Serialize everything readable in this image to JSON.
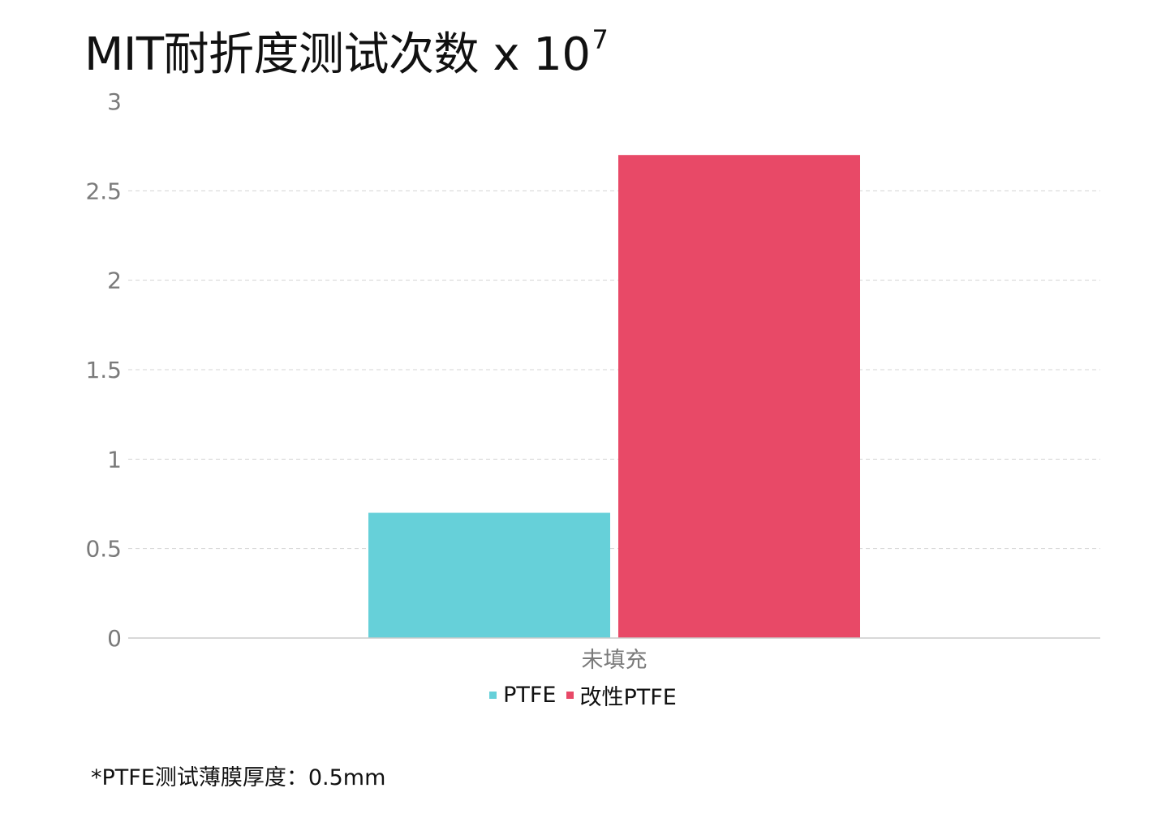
{
  "chart_data": {
    "type": "bar",
    "title": "MIT耐折度测试次数 x 10",
    "title_exponent": "7",
    "categories": [
      "未填充"
    ],
    "series": [
      {
        "name": "PTFE",
        "values": [
          0.7
        ],
        "color": "#66d0d9"
      },
      {
        "name": "改性PTFE",
        "values": [
          2.7
        ],
        "color": "#e84967"
      }
    ],
    "y_ticks": [
      "0",
      "0.5",
      "1",
      "1.5",
      "2",
      "2.5",
      "3"
    ],
    "ylim": [
      0,
      3
    ],
    "grid": true,
    "legend_position": "bottom-center",
    "xlabel": "",
    "ylabel": ""
  },
  "footnote": "*PTFE测试薄膜厚度：0.5mm"
}
